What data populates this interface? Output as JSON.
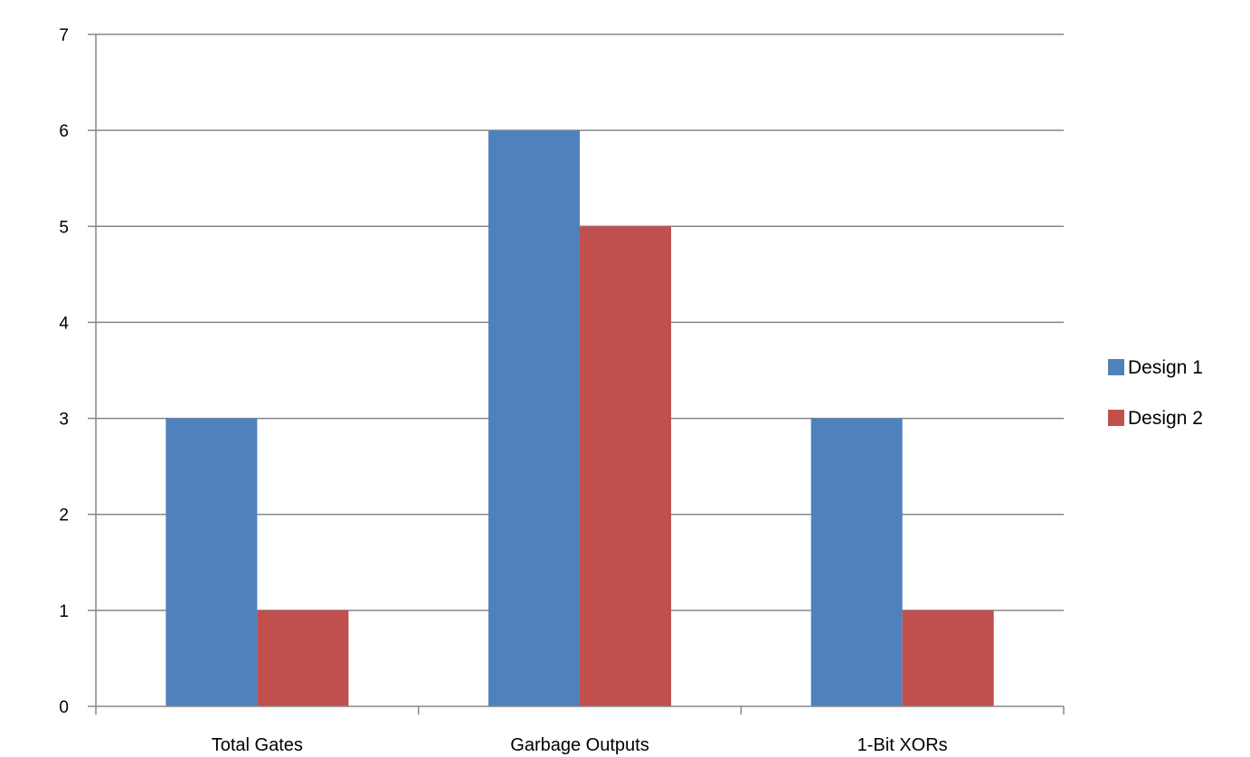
{
  "chart_data": {
    "type": "bar",
    "categories": [
      "Total Gates",
      "Garbage Outputs",
      "1-Bit XORs"
    ],
    "series": [
      {
        "name": "Design 1",
        "values": [
          3,
          6,
          3
        ],
        "color": "#4f81bd"
      },
      {
        "name": "Design 2",
        "values": [
          1,
          5,
          1
        ],
        "color": "#c0504d"
      }
    ],
    "title": "",
    "xlabel": "",
    "ylabel": "",
    "ylim": [
      0,
      7
    ],
    "yticks": [
      0,
      1,
      2,
      3,
      4,
      5,
      6,
      7
    ],
    "grid": true,
    "legend": "right"
  }
}
